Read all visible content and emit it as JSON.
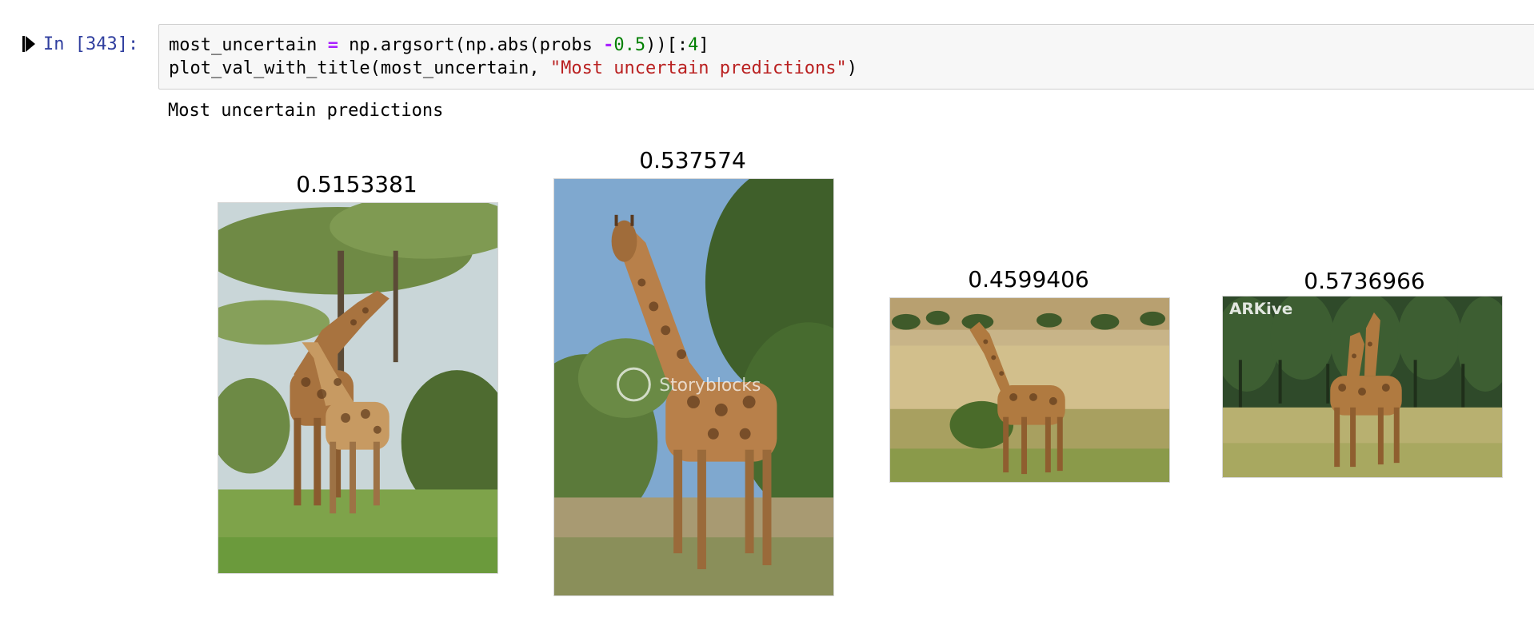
{
  "cell": {
    "prompt": "In [343]:",
    "code": {
      "line1": {
        "var": "most_uncertain ",
        "eq": "=",
        "call_a": " np.argsort(np.abs(probs ",
        "minus": "-",
        "half": "0.5",
        "call_b": "))[:",
        "four": "4",
        "close": "]"
      },
      "line2": {
        "call": "plot_val_with_title(most_uncertain, ",
        "string": "\"Most uncertain predictions\"",
        "close": ")"
      }
    }
  },
  "output": {
    "stdout": "Most uncertain predictions",
    "images": [
      {
        "title": "0.5153381"
      },
      {
        "title": "0.537574",
        "watermark": "Storyblocks"
      },
      {
        "title": "0.4599406"
      },
      {
        "title": "0.5736966",
        "watermark": "ARKive"
      }
    ]
  },
  "colors": {
    "prompt": "#303F9F",
    "operator": "#AA22FF",
    "number": "#008000",
    "string": "#BA2121",
    "code_bg": "#f7f7f7"
  }
}
